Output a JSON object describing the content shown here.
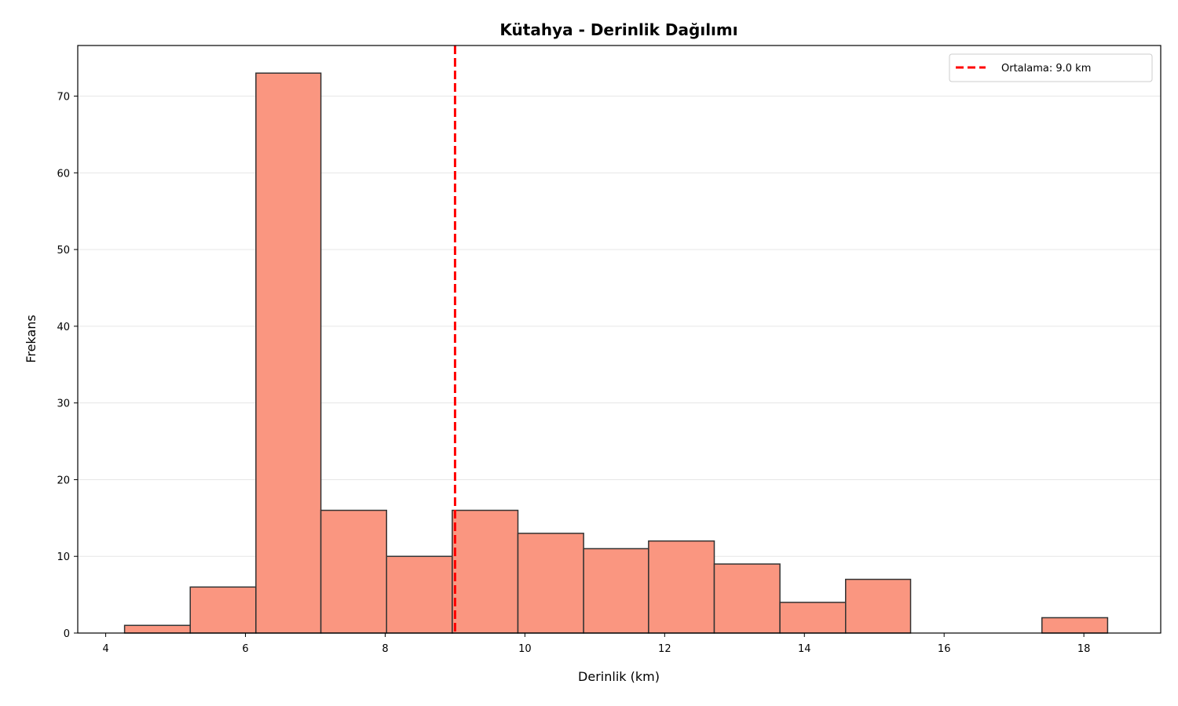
{
  "chart_data": {
    "type": "bar",
    "title": "Kütahya - Derinlik Dağılımı",
    "xlabel": "Derinlik (km)",
    "ylabel": "Frekans",
    "xlim": [
      3.6,
      19.1
    ],
    "ylim": [
      0,
      76.6
    ],
    "xticks": [
      4,
      6,
      8,
      10,
      12,
      14,
      16,
      18
    ],
    "yticks": [
      0,
      10,
      20,
      30,
      40,
      50,
      60,
      70
    ],
    "grid": "y",
    "bin_edges": [
      4.27,
      5.21,
      6.15,
      7.08,
      8.02,
      8.96,
      9.9,
      10.84,
      11.77,
      12.71,
      13.65,
      14.59,
      15.52,
      16.46,
      17.4,
      18.34
    ],
    "values": [
      1,
      6,
      73,
      16,
      10,
      16,
      13,
      11,
      12,
      9,
      4,
      7,
      0,
      0,
      2
    ],
    "bar_color": "#fa9680",
    "edge_color": "#333333",
    "mean_line": {
      "value": 9.0,
      "color": "#ff0000",
      "style": "dashed"
    },
    "legend": {
      "label": "Ortalama: 9.0 km",
      "placement": "top-right"
    }
  }
}
